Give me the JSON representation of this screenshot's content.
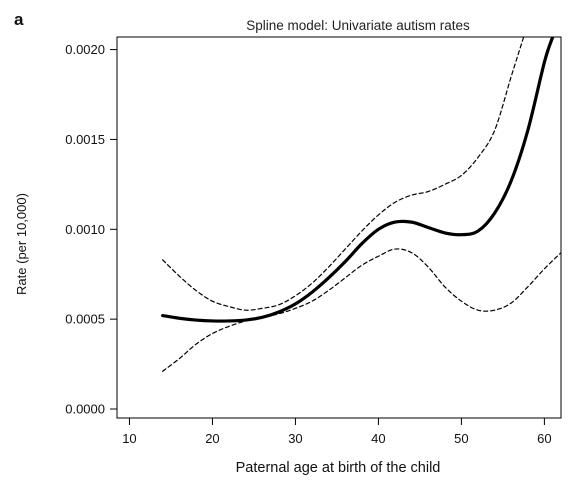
{
  "panel_label": "a",
  "chart_data": {
    "type": "line",
    "title": "Spline model: Univariate autism rates",
    "xlabel": "Paternal age at birth of the child",
    "ylabel": "Rate (per 10,000)",
    "xlim": [
      8.5,
      62
    ],
    "ylim": [
      -5e-05,
      0.00207
    ],
    "x_ticks": [
      10,
      20,
      30,
      40,
      50,
      60
    ],
    "x_tick_labels": [
      "10",
      "20",
      "30",
      "40",
      "50",
      "60"
    ],
    "y_ticks": [
      0,
      0.0005,
      0.001,
      0.0015,
      0.002
    ],
    "y_tick_labels": [
      "0.0000",
      "0.0005",
      "0.0010",
      "0.0015",
      "0.0020"
    ],
    "grid": false,
    "series": [
      {
        "style": "solid",
        "x": [
          14,
          16,
          18,
          20,
          22,
          24,
          26,
          28,
          30,
          32,
          34,
          36,
          38,
          40,
          42,
          44,
          46,
          48,
          50,
          52,
          54,
          56,
          58,
          60,
          61
        ],
        "y": [
          0.00052,
          0.000505,
          0.000495,
          0.00049,
          0.00049,
          0.000495,
          0.00051,
          0.00054,
          0.000585,
          0.00065,
          0.00073,
          0.00082,
          0.00092,
          0.001,
          0.00104,
          0.00104,
          0.00101,
          0.00098,
          0.00097,
          0.00099,
          0.00109,
          0.00127,
          0.00155,
          0.00193,
          0.00207
        ]
      },
      {
        "style": "dashed",
        "x": [
          14,
          16,
          18,
          20,
          22,
          24,
          26,
          28,
          30,
          32,
          34,
          36,
          38,
          40,
          42,
          44,
          46,
          48,
          50,
          52,
          54,
          56,
          57.5
        ],
        "y": [
          0.00083,
          0.00074,
          0.00066,
          0.0006,
          0.00057,
          0.00055,
          0.00056,
          0.00058,
          0.00063,
          0.0007,
          0.00079,
          0.00089,
          0.00099,
          0.00108,
          0.00115,
          0.00119,
          0.00121,
          0.00125,
          0.0013,
          0.0014,
          0.00155,
          0.00185,
          0.00207
        ]
      },
      {
        "style": "dashed",
        "x": [
          14,
          16,
          18,
          20,
          22,
          24,
          26,
          28,
          30,
          32,
          34,
          36,
          38,
          40,
          42,
          44,
          46,
          48,
          50,
          52,
          54,
          56,
          58,
          60,
          62
        ],
        "y": [
          0.00021,
          0.00028,
          0.00036,
          0.00042,
          0.00046,
          0.00049,
          0.00051,
          0.00053,
          0.00056,
          0.0006,
          0.00066,
          0.00073,
          0.0008,
          0.00085,
          0.00089,
          0.00087,
          0.00079,
          0.00068,
          0.0006,
          0.00055,
          0.00055,
          0.00059,
          0.00068,
          0.00078,
          0.00087
        ]
      }
    ]
  }
}
